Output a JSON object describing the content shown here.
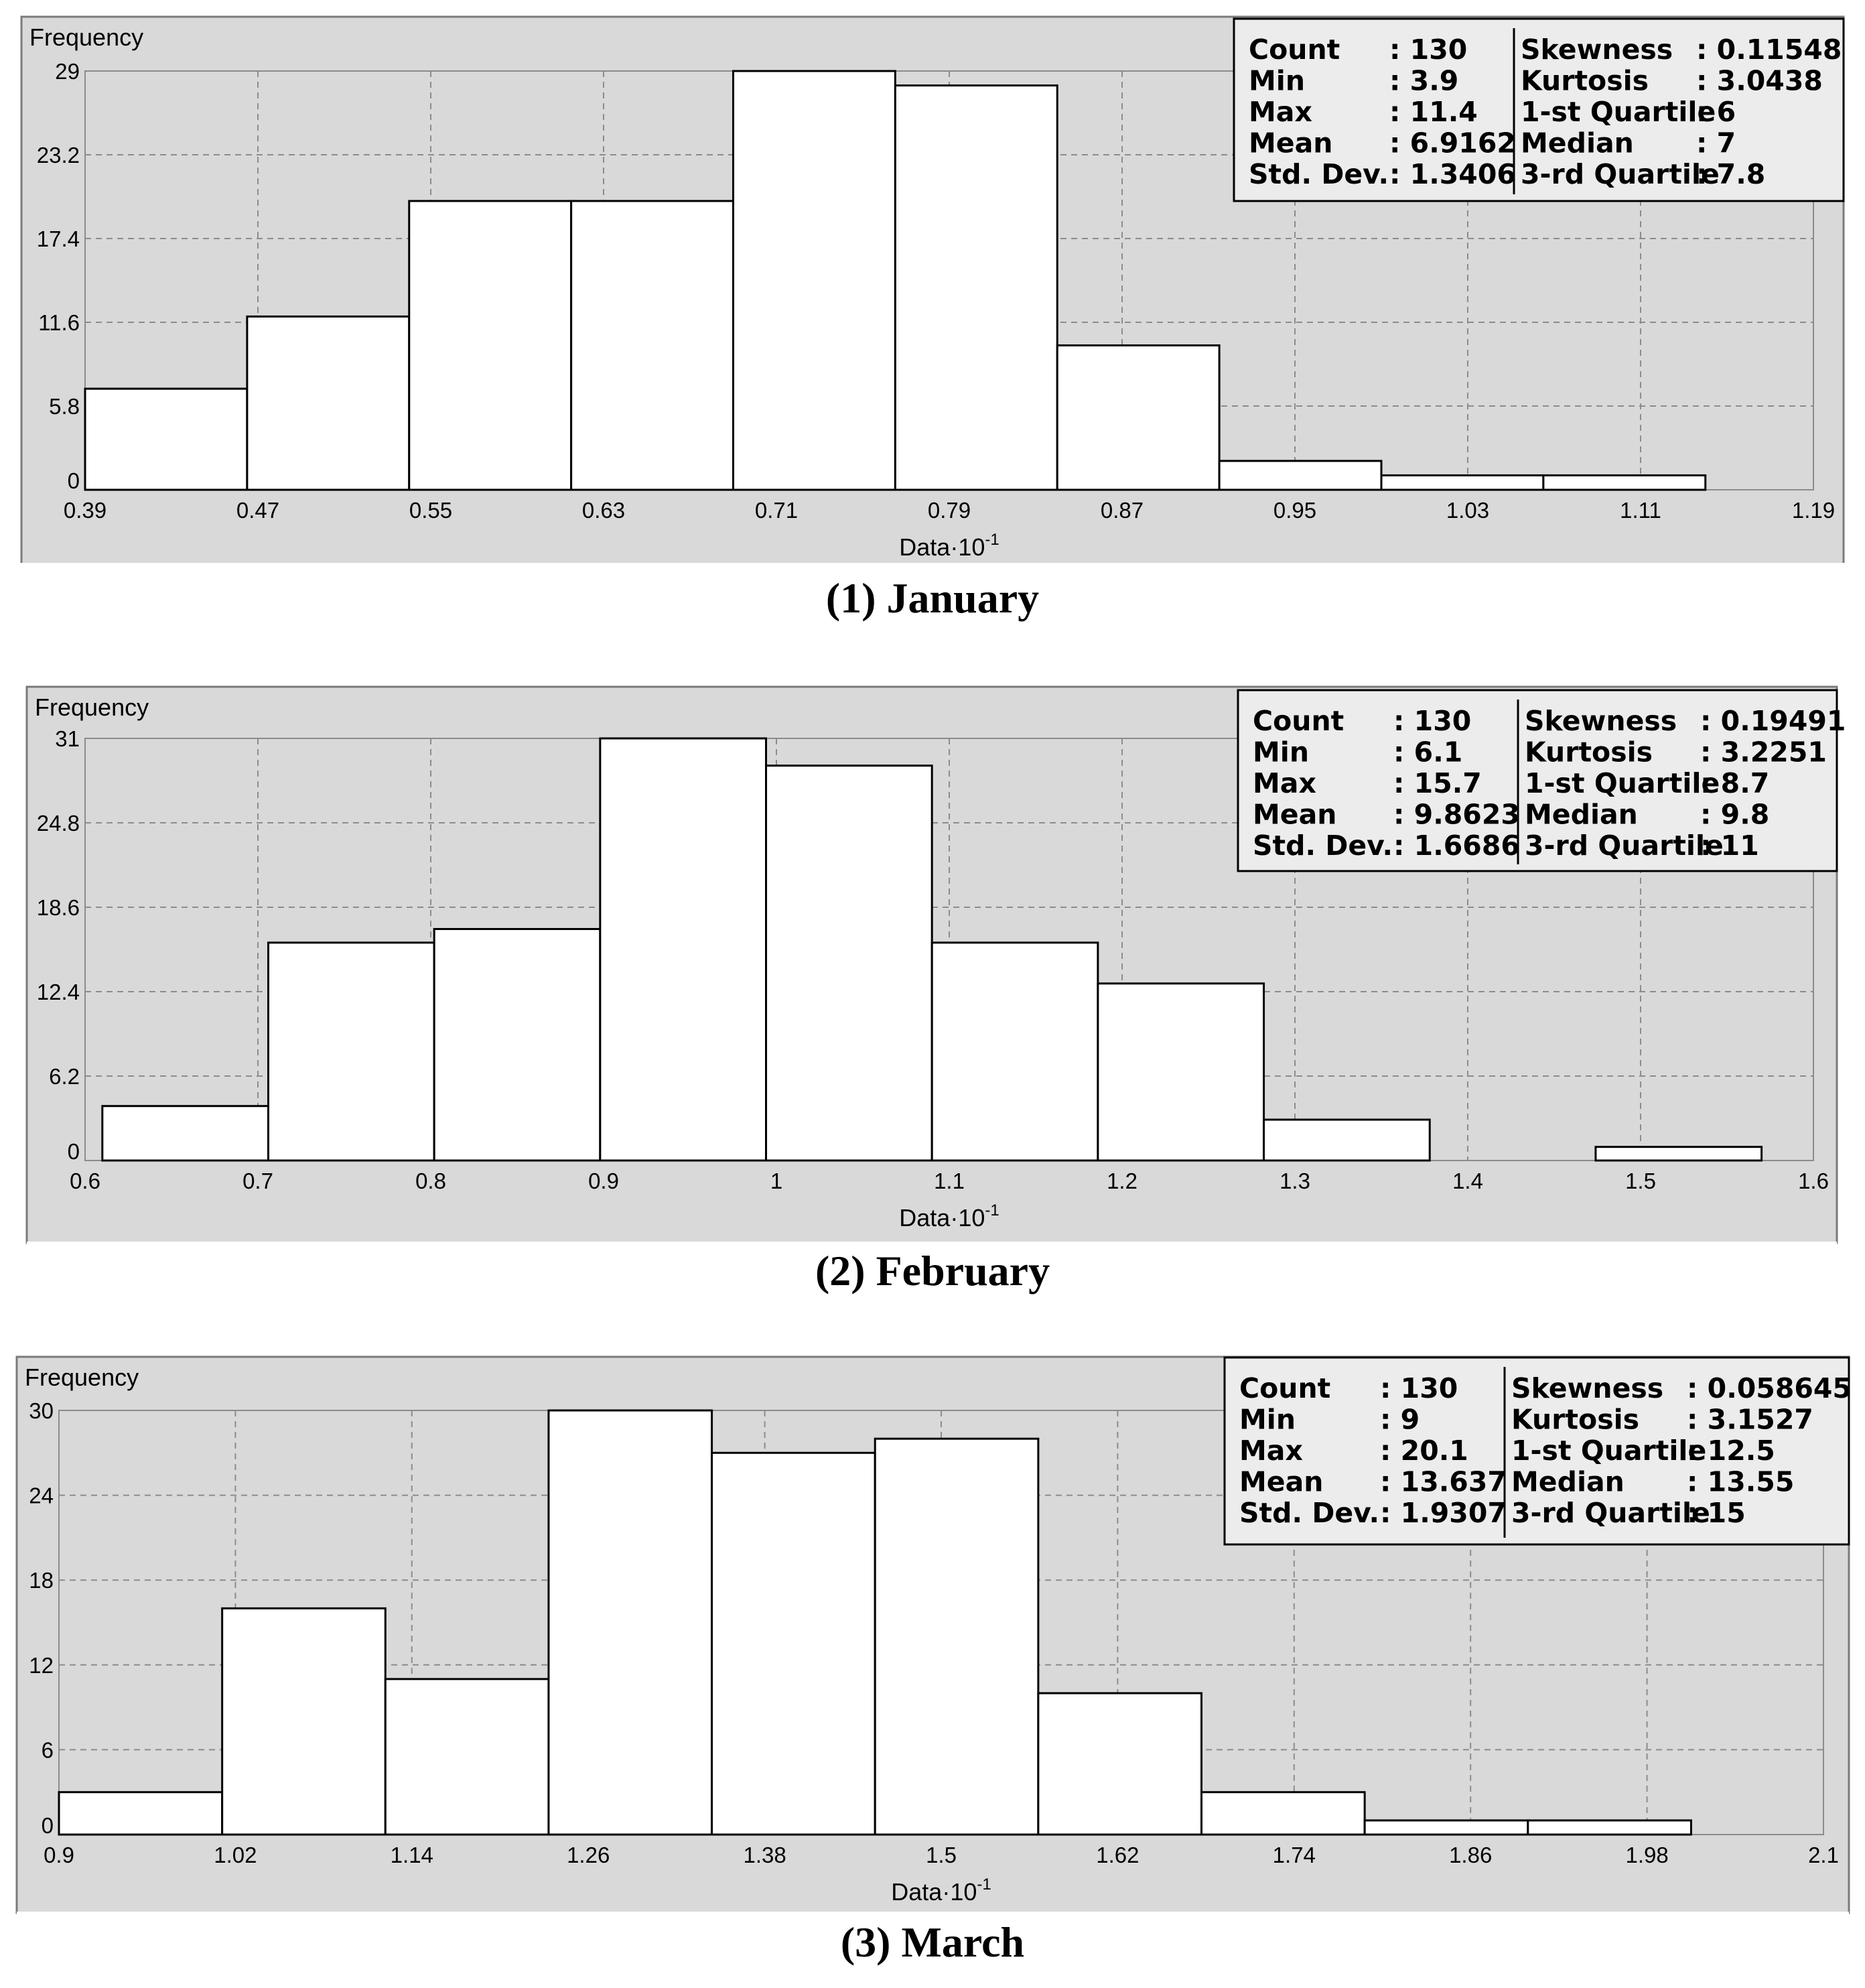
{
  "captions": [
    "(1) January",
    "(2) February",
    "(3) March"
  ],
  "chart_data": [
    {
      "type": "bar",
      "subtype": "histogram",
      "ylabel": "Frequency",
      "xlabel_base": "Data·10",
      "xlabel_exp": "-1",
      "x_ticks": [
        "0.39",
        "0.47",
        "0.55",
        "0.63",
        "0.71",
        "0.79",
        "0.87",
        "0.95",
        "1.03",
        "1.11",
        "1.19"
      ],
      "y_ticks": [
        "0",
        "5.8",
        "11.6",
        "17.4",
        "23.2",
        "29"
      ],
      "xlim": [
        0.39,
        1.19
      ],
      "ylim": [
        0,
        29
      ],
      "bins": [
        {
          "x0": 0.39,
          "x1": 0.465,
          "value": 7
        },
        {
          "x0": 0.465,
          "x1": 0.54,
          "value": 12
        },
        {
          "x0": 0.54,
          "x1": 0.615,
          "value": 20
        },
        {
          "x0": 0.615,
          "x1": 0.69,
          "value": 20
        },
        {
          "x0": 0.69,
          "x1": 0.765,
          "value": 29
        },
        {
          "x0": 0.765,
          "x1": 0.84,
          "value": 28
        },
        {
          "x0": 0.84,
          "x1": 0.915,
          "value": 10
        },
        {
          "x0": 0.915,
          "x1": 0.99,
          "value": 2
        },
        {
          "x0": 0.99,
          "x1": 1.065,
          "value": 1
        },
        {
          "x0": 1.065,
          "x1": 1.14,
          "value": 1
        }
      ],
      "stats_left": [
        {
          "label": "Count",
          "value": ": 130"
        },
        {
          "label": "Min",
          "value": ": 3.9"
        },
        {
          "label": "Max",
          "value": ": 11.4"
        },
        {
          "label": "Mean",
          "value": ": 6.9162"
        },
        {
          "label": "Std. Dev.",
          "value": ": 1.3406"
        }
      ],
      "stats_right": [
        {
          "label": "Skewness",
          "value": ": 0.11548"
        },
        {
          "label": "Kurtosis",
          "value": ": 3.0438"
        },
        {
          "label": "1-st Quartile",
          "value": ": 6"
        },
        {
          "label": "Median",
          "value": ": 7"
        },
        {
          "label": "3-rd Quartile",
          "value": ": 7.8"
        }
      ],
      "grid": true,
      "legend": "top-right"
    },
    {
      "type": "bar",
      "subtype": "histogram",
      "ylabel": "Frequency",
      "xlabel_base": "Data·10",
      "xlabel_exp": "-1",
      "x_ticks": [
        "0.6",
        "0.7",
        "0.8",
        "0.9",
        "1",
        "1.1",
        "1.2",
        "1.3",
        "1.4",
        "1.5",
        "1.6"
      ],
      "y_ticks": [
        "0",
        "6.2",
        "12.4",
        "18.6",
        "24.8",
        "31"
      ],
      "xlim": [
        0.6,
        1.6
      ],
      "ylim": [
        0,
        31
      ],
      "bins": [
        {
          "x0": 0.61,
          "x1": 0.706,
          "value": 4
        },
        {
          "x0": 0.706,
          "x1": 0.802,
          "value": 16
        },
        {
          "x0": 0.802,
          "x1": 0.898,
          "value": 17
        },
        {
          "x0": 0.898,
          "x1": 0.994,
          "value": 31
        },
        {
          "x0": 0.994,
          "x1": 1.09,
          "value": 29
        },
        {
          "x0": 1.09,
          "x1": 1.186,
          "value": 16
        },
        {
          "x0": 1.186,
          "x1": 1.282,
          "value": 13
        },
        {
          "x0": 1.282,
          "x1": 1.378,
          "value": 3
        },
        {
          "x0": 1.378,
          "x1": 1.474,
          "value": 0
        },
        {
          "x0": 1.474,
          "x1": 1.57,
          "value": 1
        }
      ],
      "stats_left": [
        {
          "label": "Count",
          "value": ": 130"
        },
        {
          "label": "Min",
          "value": ": 6.1"
        },
        {
          "label": "Max",
          "value": ": 15.7"
        },
        {
          "label": "Mean",
          "value": ": 9.8623"
        },
        {
          "label": "Std. Dev.",
          "value": ": 1.6686"
        }
      ],
      "stats_right": [
        {
          "label": "Skewness",
          "value": ": 0.19491"
        },
        {
          "label": "Kurtosis",
          "value": ": 3.2251"
        },
        {
          "label": "1-st Quartile",
          "value": ": 8.7"
        },
        {
          "label": "Median",
          "value": ": 9.8"
        },
        {
          "label": "3-rd Quartile",
          "value": ": 11"
        }
      ],
      "grid": true,
      "legend": "top-right"
    },
    {
      "type": "bar",
      "subtype": "histogram",
      "ylabel": "Frequency",
      "xlabel_base": "Data·10",
      "xlabel_exp": "-1",
      "x_ticks": [
        "0.9",
        "1.02",
        "1.14",
        "1.26",
        "1.38",
        "1.5",
        "1.62",
        "1.74",
        "1.86",
        "1.98",
        "2.1"
      ],
      "y_ticks": [
        "0",
        "6",
        "12",
        "18",
        "24",
        "30"
      ],
      "xlim": [
        0.9,
        2.1
      ],
      "ylim": [
        0,
        30
      ],
      "bins": [
        {
          "x0": 0.9,
          "x1": 1.011,
          "value": 3
        },
        {
          "x0": 1.011,
          "x1": 1.122,
          "value": 16
        },
        {
          "x0": 1.122,
          "x1": 1.233,
          "value": 11
        },
        {
          "x0": 1.233,
          "x1": 1.344,
          "value": 30
        },
        {
          "x0": 1.344,
          "x1": 1.455,
          "value": 27
        },
        {
          "x0": 1.455,
          "x1": 1.566,
          "value": 28
        },
        {
          "x0": 1.566,
          "x1": 1.677,
          "value": 10
        },
        {
          "x0": 1.677,
          "x1": 1.788,
          "value": 3
        },
        {
          "x0": 1.788,
          "x1": 1.899,
          "value": 1
        },
        {
          "x0": 1.899,
          "x1": 2.01,
          "value": 1
        }
      ],
      "stats_left": [
        {
          "label": "Count",
          "value": ": 130"
        },
        {
          "label": "Min",
          "value": ": 9"
        },
        {
          "label": "Max",
          "value": ": 20.1"
        },
        {
          "label": "Mean",
          "value": ": 13.637"
        },
        {
          "label": "Std. Dev.",
          "value": ": 1.9307"
        }
      ],
      "stats_right": [
        {
          "label": "Skewness",
          "value": ": 0.058645"
        },
        {
          "label": "Kurtosis",
          "value": ": 3.1527"
        },
        {
          "label": "1-st Quartile",
          "value": ": 12.5"
        },
        {
          "label": "Median",
          "value": ": 13.55"
        },
        {
          "label": "3-rd Quartile",
          "value": ": 15"
        }
      ],
      "grid": true,
      "legend": "top-right"
    }
  ]
}
